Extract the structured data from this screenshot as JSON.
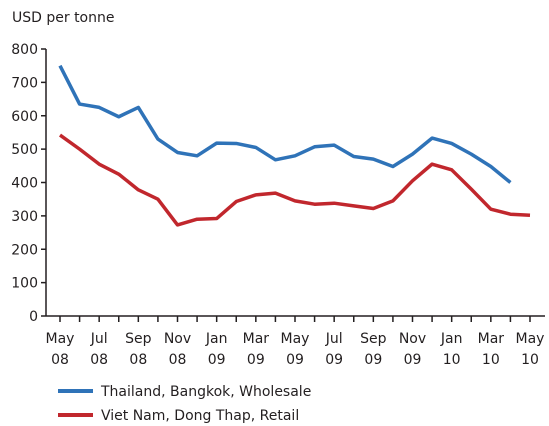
{
  "chart_data": {
    "type": "line",
    "y_axis_label": "USD per tonne",
    "categories": [
      "May 08",
      null,
      "Jul 08",
      null,
      "Sep 08",
      null,
      "Nov 08",
      null,
      "Jan 09",
      null,
      "Mar 09",
      null,
      "May 09",
      null,
      "Jul 09",
      null,
      "Sep 09",
      null,
      "Nov 09",
      null,
      "Jan 10",
      null,
      "Mar 10",
      null,
      "May 10"
    ],
    "series": [
      {
        "name": "Thailand, Bangkok, Wholesale",
        "color": "#2f73b8",
        "values": [
          750,
          635,
          625,
          597,
          625,
          530,
          490,
          480,
          518,
          517,
          505,
          468,
          480,
          507,
          512,
          478,
          470,
          448,
          485,
          533,
          517,
          485,
          448,
          400,
          null
        ]
      },
      {
        "name": "Viet Nam, Dong Thap, Retail",
        "color": "#c1272d",
        "values": [
          542,
          500,
          455,
          425,
          378,
          350,
          273,
          290,
          292,
          343,
          363,
          368,
          345,
          335,
          338,
          330,
          322,
          345,
          405,
          455,
          438,
          380,
          320,
          305,
          302
        ]
      }
    ],
    "ylim": [
      0,
      800
    ],
    "yticks": [
      0,
      100,
      200,
      300,
      400,
      500,
      600,
      700,
      800
    ],
    "grid": false,
    "legend": "bottom"
  }
}
